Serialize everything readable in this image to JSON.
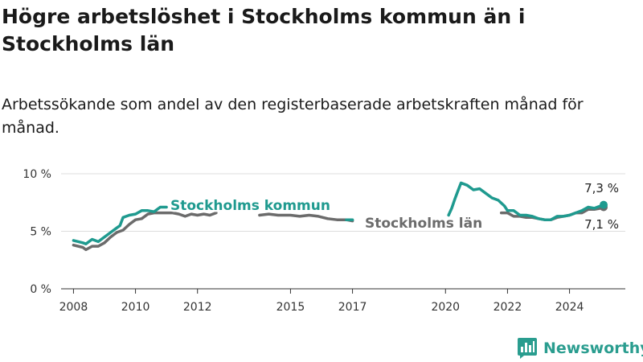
{
  "title": "Högre arbetslöshet i Stockholms kommun än i Stockholms län",
  "subtitle": "Arbetssökande som andel av den registerbaserade arbetskraften månad för månad.",
  "brand": {
    "name": "Newsworthy",
    "icon": "bar-chart-logo-icon",
    "color": "#2a9d8f"
  },
  "chart_data": {
    "type": "line",
    "xlim": [
      2007.6,
      2025.8
    ],
    "ylim": [
      0,
      10
    ],
    "y_ticks": [
      {
        "value": 0,
        "label": "0 %"
      },
      {
        "value": 5,
        "label": "5 %"
      },
      {
        "value": 10,
        "label": "10 %"
      }
    ],
    "x_ticks": [
      {
        "value": 2008,
        "label": "2008"
      },
      {
        "value": 2010,
        "label": "2010"
      },
      {
        "value": 2012,
        "label": "2012"
      },
      {
        "value": 2015,
        "label": "2015"
      },
      {
        "value": 2017,
        "label": "2017"
      },
      {
        "value": 2020,
        "label": "2020"
      },
      {
        "value": 2022,
        "label": "2022"
      },
      {
        "value": 2024,
        "label": "2024"
      }
    ],
    "grid": "horizontal",
    "series": [
      {
        "name": "Stockholms län",
        "color": "#6b6b6b",
        "end_label": "7,1 %",
        "segments": [
          [
            [
              2008,
              3.8
            ],
            [
              2008.3,
              3.6
            ],
            [
              2008.4,
              3.4
            ],
            [
              2008.6,
              3.7
            ],
            [
              2008.8,
              3.7
            ],
            [
              2009.0,
              4.0
            ],
            [
              2009.2,
              4.5
            ],
            [
              2009.4,
              4.9
            ],
            [
              2009.6,
              5.1
            ],
            [
              2009.8,
              5.6
            ],
            [
              2010.0,
              6.0
            ],
            [
              2010.2,
              6.1
            ],
            [
              2010.4,
              6.5
            ],
            [
              2010.6,
              6.6
            ],
            [
              2010.8,
              6.6
            ],
            [
              2011.0,
              6.6
            ],
            [
              2011.2,
              6.6
            ],
            [
              2011.4,
              6.5
            ],
            [
              2011.6,
              6.3
            ],
            [
              2011.8,
              6.5
            ],
            [
              2012.0,
              6.4
            ],
            [
              2012.2,
              6.5
            ],
            [
              2012.4,
              6.4
            ],
            [
              2012.6,
              6.6
            ]
          ],
          [
            [
              2014.0,
              6.4
            ],
            [
              2014.3,
              6.5
            ],
            [
              2014.6,
              6.4
            ],
            [
              2015.0,
              6.4
            ],
            [
              2015.3,
              6.3
            ],
            [
              2015.6,
              6.4
            ],
            [
              2015.9,
              6.3
            ],
            [
              2016.2,
              6.1
            ],
            [
              2016.5,
              6.0
            ],
            [
              2016.8,
              6.0
            ],
            [
              2017.0,
              5.9
            ]
          ],
          [
            [
              2021.8,
              6.6
            ],
            [
              2022.0,
              6.6
            ],
            [
              2022.2,
              6.3
            ],
            [
              2022.4,
              6.3
            ],
            [
              2022.6,
              6.2
            ],
            [
              2022.8,
              6.2
            ],
            [
              2023.0,
              6.1
            ],
            [
              2023.2,
              6.0
            ],
            [
              2023.4,
              6.0
            ],
            [
              2023.6,
              6.2
            ],
            [
              2023.8,
              6.3
            ],
            [
              2024.0,
              6.4
            ],
            [
              2024.2,
              6.6
            ],
            [
              2024.4,
              6.6
            ],
            [
              2024.6,
              6.9
            ],
            [
              2024.8,
              6.9
            ],
            [
              2025.0,
              7.0
            ],
            [
              2025.1,
              7.1
            ]
          ]
        ]
      },
      {
        "name": "Stockholms kommun",
        "color": "#1f9a8f",
        "end_label": "7,3 %",
        "segments": [
          [
            [
              2008,
              4.2
            ],
            [
              2008.3,
              4.0
            ],
            [
              2008.4,
              3.9
            ],
            [
              2008.6,
              4.3
            ],
            [
              2008.8,
              4.1
            ],
            [
              2009.0,
              4.5
            ],
            [
              2009.2,
              4.9
            ],
            [
              2009.4,
              5.3
            ],
            [
              2009.5,
              5.5
            ],
            [
              2009.6,
              6.2
            ],
            [
              2009.8,
              6.4
            ],
            [
              2010.0,
              6.5
            ],
            [
              2010.2,
              6.8
            ],
            [
              2010.4,
              6.8
            ],
            [
              2010.6,
              6.7
            ],
            [
              2010.8,
              7.1
            ],
            [
              2011.0,
              7.1
            ]
          ],
          [
            [
              2016.8,
              6.0
            ],
            [
              2017.0,
              6.0
            ]
          ],
          [
            [
              2020.1,
              6.4
            ],
            [
              2020.2,
              7.0
            ],
            [
              2020.3,
              7.8
            ],
            [
              2020.4,
              8.5
            ],
            [
              2020.5,
              9.2
            ],
            [
              2020.7,
              9.0
            ],
            [
              2020.9,
              8.6
            ],
            [
              2021.1,
              8.7
            ],
            [
              2021.3,
              8.3
            ],
            [
              2021.5,
              7.9
            ],
            [
              2021.7,
              7.7
            ],
            [
              2021.9,
              7.2
            ],
            [
              2022.0,
              6.8
            ],
            [
              2022.2,
              6.8
            ],
            [
              2022.4,
              6.4
            ],
            [
              2022.6,
              6.4
            ],
            [
              2022.8,
              6.3
            ],
            [
              2023.0,
              6.1
            ],
            [
              2023.2,
              6.0
            ],
            [
              2023.4,
              6.0
            ],
            [
              2023.6,
              6.3
            ],
            [
              2023.8,
              6.3
            ],
            [
              2024.0,
              6.4
            ],
            [
              2024.2,
              6.6
            ],
            [
              2024.4,
              6.8
            ],
            [
              2024.6,
              7.1
            ],
            [
              2024.8,
              7.0
            ],
            [
              2025.0,
              7.2
            ],
            [
              2025.1,
              7.3
            ]
          ]
        ]
      }
    ]
  }
}
